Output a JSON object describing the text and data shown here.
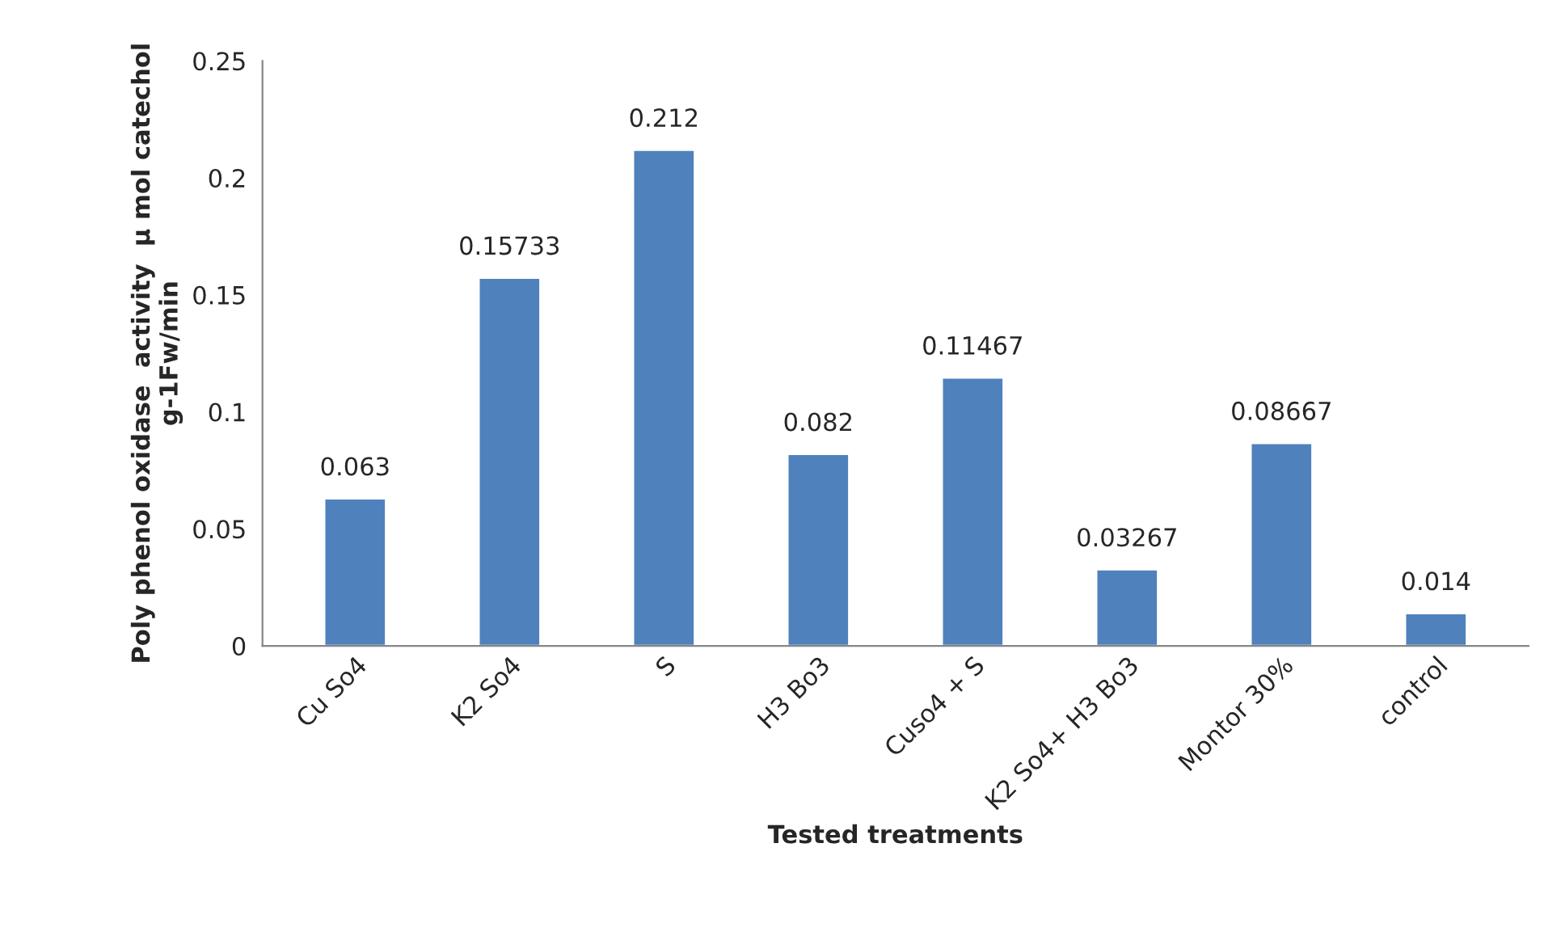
{
  "chart_data": {
    "type": "bar",
    "xlabel": "Tested treatments",
    "ylabel": "Poly phenol oxidase  activity  µ mol catechol g-1Fw/min",
    "categories": [
      "Cu So4",
      "K2 So4",
      "S",
      "H3 Bo3",
      "Cuso4 + S",
      "K2 So4+ H3 Bo3",
      "Montor 30%",
      "control"
    ],
    "values": [
      0.063,
      0.15733,
      0.212,
      0.082,
      0.11467,
      0.03267,
      0.08667,
      0.014
    ],
    "color": "#4f81bd",
    "ylim": [
      0,
      0.25
    ],
    "yticks": [
      0,
      0.05,
      0.1,
      0.15,
      0.2,
      0.25
    ],
    "grid": false,
    "data_labels": true
  }
}
